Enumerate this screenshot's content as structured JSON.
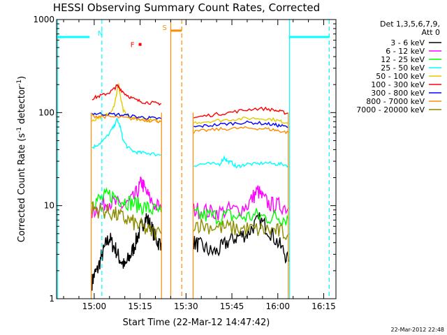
{
  "chart_data": {
    "type": "line",
    "title": "HESSI Observing Summary Count Rates, Corrected",
    "xlabel": "Start Time (22-Mar-12 14:47:42)",
    "ylabel_main": "Corrected Count Rate (s",
    "ylabel_sup1": "-1",
    "ylabel_mid": " detector",
    "ylabel_sup2": "-1",
    "ylabel_end": ")",
    "yscale": "log",
    "ylim": [
      1,
      1000
    ],
    "xlim_min": [
      47.7,
      139.0
    ],
    "x_ticks": [
      {
        "t": 60,
        "label": "15:00"
      },
      {
        "t": 75,
        "label": "15:15"
      },
      {
        "t": 90,
        "label": "15:30"
      },
      {
        "t": 105,
        "label": "15:45"
      },
      {
        "t": 120,
        "label": "16:00"
      },
      {
        "t": 135,
        "label": "16:15"
      }
    ],
    "y_ticks": [
      {
        "v": 1,
        "label": "1"
      },
      {
        "v": 10,
        "label": "10"
      },
      {
        "v": 100,
        "label": "100"
      },
      {
        "v": 1000,
        "label": "1000"
      }
    ],
    "legend_header": [
      "Det 1,3,5,6,7,9,",
      "Att 0"
    ],
    "series": [
      {
        "name": "3 - 6 keV",
        "color": "#000000",
        "segments": [
          [
            [
              59.3,
              1.5
            ],
            [
              60,
              1.8
            ],
            [
              61,
              2.0
            ],
            [
              62,
              2.6
            ],
            [
              63,
              3.2
            ],
            [
              64,
              4.0
            ],
            [
              65,
              4.5
            ],
            [
              66,
              3.8
            ],
            [
              67,
              3.4
            ],
            [
              68,
              2.8
            ],
            [
              69,
              2.5
            ],
            [
              70,
              2.2
            ],
            [
              71,
              2.6
            ],
            [
              72,
              3.0
            ],
            [
              73,
              3.6
            ],
            [
              74,
              4.5
            ],
            [
              75,
              5.5
            ],
            [
              76,
              6.5
            ],
            [
              77,
              7.5
            ],
            [
              78,
              6.5
            ],
            [
              79,
              5.5
            ],
            [
              80,
              4.5
            ],
            [
              81,
              4.0
            ],
            [
              81.9,
              4.0
            ]
          ],
          [
            [
              92.5,
              4.0
            ],
            [
              94,
              3.8
            ],
            [
              96,
              3.5
            ],
            [
              98,
              3.2
            ],
            [
              100,
              3.2
            ],
            [
              102,
              3.6
            ],
            [
              104,
              4.2
            ],
            [
              106,
              4.5
            ],
            [
              108,
              4.8
            ],
            [
              110,
              5.0
            ],
            [
              112,
              6.0
            ],
            [
              114,
              7.0
            ],
            [
              116,
              6.0
            ],
            [
              118,
              5.0
            ],
            [
              120,
              4.0
            ],
            [
              122,
              3.2
            ],
            [
              123.5,
              2.5
            ]
          ]
        ]
      },
      {
        "name": "6 - 12 keV",
        "color": "#ff00ff",
        "segments": [
          [
            [
              59.3,
              8.5
            ],
            [
              61,
              9.5
            ],
            [
              63,
              10.5
            ],
            [
              65,
              11.0
            ],
            [
              67,
              10.5
            ],
            [
              69,
              10.0
            ],
            [
              71,
              10.5
            ],
            [
              73,
              12.0
            ],
            [
              74.5,
              15.0
            ],
            [
              75.5,
              18.0
            ],
            [
              76.5,
              15.0
            ],
            [
              78,
              12.0
            ],
            [
              80,
              10.0
            ],
            [
              81.9,
              9.5
            ]
          ],
          [
            [
              92.5,
              9.0
            ],
            [
              95,
              9.0
            ],
            [
              98,
              8.5
            ],
            [
              101,
              8.5
            ],
            [
              104,
              9.0
            ],
            [
              107,
              9.0
            ],
            [
              110,
              10.0
            ],
            [
              112,
              12.5
            ],
            [
              113.5,
              14.5
            ],
            [
              115,
              12.0
            ],
            [
              117,
              10.5
            ],
            [
              119,
              10.0
            ],
            [
              121,
              10.0
            ],
            [
              123.5,
              9.5
            ]
          ]
        ]
      },
      {
        "name": "12 - 25 keV",
        "color": "#00ff00",
        "segments": [
          [
            [
              59.3,
              11.0
            ],
            [
              61,
              11.5
            ],
            [
              63,
              12.0
            ],
            [
              65,
              13.0
            ],
            [
              67,
              12.5
            ],
            [
              69,
              11.5
            ],
            [
              71,
              11.0
            ],
            [
              73,
              10.5
            ],
            [
              75,
              10.0
            ],
            [
              77,
              9.5
            ],
            [
              79,
              9.0
            ],
            [
              81.9,
              8.5
            ]
          ],
          [
            [
              92.5,
              8.0
            ],
            [
              95,
              7.8
            ],
            [
              98,
              7.8
            ],
            [
              101,
              7.6
            ],
            [
              104,
              7.8
            ],
            [
              107,
              7.5
            ],
            [
              110,
              7.6
            ],
            [
              113,
              7.8
            ],
            [
              116,
              7.5
            ],
            [
              119,
              7.6
            ],
            [
              121,
              7.5
            ],
            [
              123.5,
              7.2
            ]
          ]
        ]
      },
      {
        "name": "25 - 50 keV",
        "color": "#00ffff",
        "segments": [
          [
            [
              59.3,
              42
            ],
            [
              61,
              45
            ],
            [
              63,
              50
            ],
            [
              65,
              60
            ],
            [
              66.5,
              72
            ],
            [
              67.5,
              85
            ],
            [
              68.5,
              70
            ],
            [
              69.5,
              50
            ],
            [
              71,
              42
            ],
            [
              73,
              38
            ],
            [
              75,
              37
            ],
            [
              77,
              37
            ],
            [
              79,
              36
            ],
            [
              81.9,
              35
            ]
          ],
          [
            [
              92.5,
              27
            ],
            [
              95,
              28
            ],
            [
              98,
              28
            ],
            [
              101,
              28
            ],
            [
              102.5,
              33
            ],
            [
              103.5,
              30
            ],
            [
              105,
              29
            ],
            [
              106.5,
              26
            ],
            [
              108,
              27
            ],
            [
              110,
              28
            ],
            [
              113,
              28
            ],
            [
              116,
              29
            ],
            [
              119,
              28
            ],
            [
              121,
              28
            ],
            [
              123.5,
              27
            ]
          ]
        ]
      },
      {
        "name": "50 - 100 keV",
        "color": "#e6c800",
        "segments": [
          [
            [
              59.3,
              80
            ],
            [
              61,
              88
            ],
            [
              63,
              92
            ],
            [
              65,
              98
            ],
            [
              66.5,
              120
            ],
            [
              67.5,
              170
            ],
            [
              68,
              205
            ],
            [
              68.5,
              150
            ],
            [
              69.5,
              105
            ],
            [
              71,
              90
            ],
            [
              74,
              86
            ],
            [
              77,
              84
            ],
            [
              79,
              82
            ],
            [
              81.9,
              80
            ]
          ],
          [
            [
              92.5,
              78
            ],
            [
              96,
              80
            ],
            [
              100,
              82
            ],
            [
              104,
              84
            ],
            [
              108,
              86
            ],
            [
              112,
              87
            ],
            [
              116,
              86
            ],
            [
              119,
              84
            ],
            [
              121,
              80
            ],
            [
              123.5,
              78
            ]
          ]
        ]
      },
      {
        "name": "100 - 300 keV",
        "color": "#ff0000",
        "segments": [
          [
            [
              59.3,
              142
            ],
            [
              61,
              148
            ],
            [
              63,
              155
            ],
            [
              65,
              165
            ],
            [
              66.5,
              180
            ],
            [
              67.5,
              195
            ],
            [
              68.5,
              180
            ],
            [
              70,
              160
            ],
            [
              72,
              145
            ],
            [
              74,
              135
            ],
            [
              76,
              130
            ],
            [
              78,
              128
            ],
            [
              80,
              126
            ],
            [
              81.9,
              125
            ]
          ],
          [
            [
              92.5,
              88
            ],
            [
              96,
              92
            ],
            [
              100,
              96
            ],
            [
              104,
              100
            ],
            [
              108,
              105
            ],
            [
              112,
              110
            ],
            [
              116,
              110
            ],
            [
              119,
              106
            ],
            [
              121,
              102
            ],
            [
              123.5,
              98
            ]
          ]
        ]
      },
      {
        "name": "300 - 800 keV",
        "color": "#0000ff",
        "segments": [
          [
            [
              59.3,
              98
            ],
            [
              62,
              97
            ],
            [
              65,
              96
            ],
            [
              68,
              95
            ],
            [
              71,
              93
            ],
            [
              74,
              90
            ],
            [
              77,
              88
            ],
            [
              79,
              87
            ],
            [
              81.9,
              86
            ]
          ],
          [
            [
              92.5,
              70
            ],
            [
              96,
              72
            ],
            [
              100,
              74
            ],
            [
              104,
              76
            ],
            [
              108,
              78
            ],
            [
              112,
              78
            ],
            [
              116,
              76
            ],
            [
              119,
              74
            ],
            [
              121,
              72
            ],
            [
              123.5,
              70
            ]
          ]
        ]
      },
      {
        "name": "800 - 7000 keV",
        "color": "#ff8c00",
        "segments": [
          [
            [
              59.3,
              92
            ],
            [
              62,
              91
            ],
            [
              65,
              90
            ],
            [
              68,
              89
            ],
            [
              71,
              87
            ],
            [
              74,
              85
            ],
            [
              77,
              83
            ],
            [
              79,
              82
            ],
            [
              81.9,
              81
            ]
          ],
          [
            [
              92.5,
              62
            ],
            [
              96,
              64
            ],
            [
              100,
              66
            ],
            [
              104,
              67
            ],
            [
              108,
              68
            ],
            [
              112,
              68
            ],
            [
              116,
              67
            ],
            [
              119,
              65
            ],
            [
              121,
              63
            ],
            [
              123.5,
              61
            ]
          ]
        ]
      },
      {
        "name": "7000 - 20000 keV",
        "color": "#8c8c00",
        "segments": [
          [
            [
              59.3,
              9.5
            ],
            [
              61,
              9.0
            ],
            [
              63,
              8.8
            ],
            [
              65,
              8.5
            ],
            [
              67,
              8.0
            ],
            [
              69,
              7.5
            ],
            [
              71,
              7.0
            ],
            [
              73,
              6.5
            ],
            [
              75,
              6.0
            ],
            [
              77,
              5.5
            ],
            [
              79,
              5.2
            ],
            [
              81.9,
              5.0
            ]
          ],
          [
            [
              92.5,
              6.5
            ],
            [
              95,
              6.2
            ],
            [
              98,
              6.0
            ],
            [
              101,
              5.8
            ],
            [
              104,
              5.8
            ],
            [
              107,
              5.6
            ],
            [
              110,
              5.6
            ],
            [
              113,
              5.5
            ],
            [
              116,
              5.5
            ],
            [
              119,
              5.4
            ],
            [
              121,
              5.2
            ],
            [
              123.5,
              5.0
            ]
          ]
        ]
      }
    ],
    "bursts_orange": [
      [
        59.0,
        59.4
      ],
      [
        82.0,
        82.6
      ],
      [
        92.3,
        92.9
      ],
      [
        123.4,
        124.0
      ]
    ],
    "cyan_flag": {
      "color": "#00ffff",
      "y": 650,
      "segments": [
        [
          47.7,
          58.5
        ],
        [
          123.6,
          136.8
        ]
      ],
      "label": "N",
      "label_t": 62
    },
    "saa_flag": {
      "color": "#ff8c00",
      "y": 760,
      "segments": [
        [
          85.0,
          88.6
        ]
      ],
      "label": "S",
      "label_t": 83.0
    },
    "flare_flag": {
      "color": "#ff0000",
      "label": "F",
      "label_t": 72.5,
      "marker_t": 75.0,
      "y": 540
    },
    "cyan_dashed_t": [
      62.5,
      136.8
    ],
    "cyan_solid_t": [
      48.0,
      123.8
    ],
    "orange_solid_t": [
      85.0
    ],
    "orange_dashed_t": [
      88.6
    ],
    "timestamp": "22-Mar-2012 22:48"
  }
}
